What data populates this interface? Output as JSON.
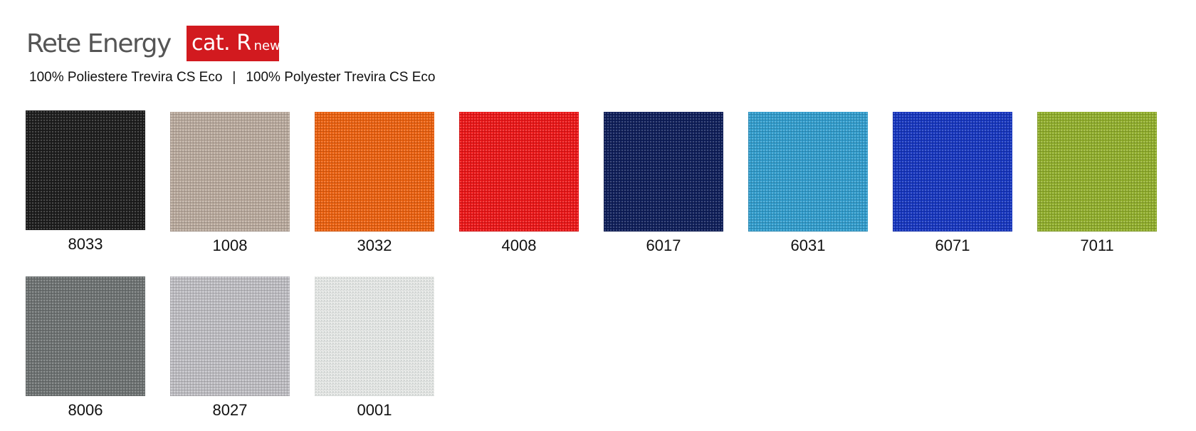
{
  "header": {
    "title": "Rete Energy",
    "badge_cat": "cat. R",
    "badge_new": "new",
    "badge_color": "#d21a1f",
    "subtitle_it": "100% Poliestere Trevira CS Eco",
    "subtitle_sep": "|",
    "subtitle_en": "100% Polyester Trevira CS Eco"
  },
  "swatches": [
    {
      "code": "8033",
      "color": "#1c1c1c"
    },
    {
      "code": "1008",
      "color": "#bdada0"
    },
    {
      "code": "3032",
      "color": "#f0620e"
    },
    {
      "code": "4008",
      "color": "#f01516"
    },
    {
      "code": "6017",
      "color": "#0d1d5a"
    },
    {
      "code": "6031",
      "color": "#319fd0"
    },
    {
      "code": "6071",
      "color": "#1535c2"
    },
    {
      "code": "7011",
      "color": "#93b12b"
    },
    {
      "code": "8006",
      "color": "#6f7474"
    },
    {
      "code": "8027",
      "color": "#c2c1c6"
    },
    {
      "code": "0001",
      "color": "#f1f2f0"
    }
  ]
}
